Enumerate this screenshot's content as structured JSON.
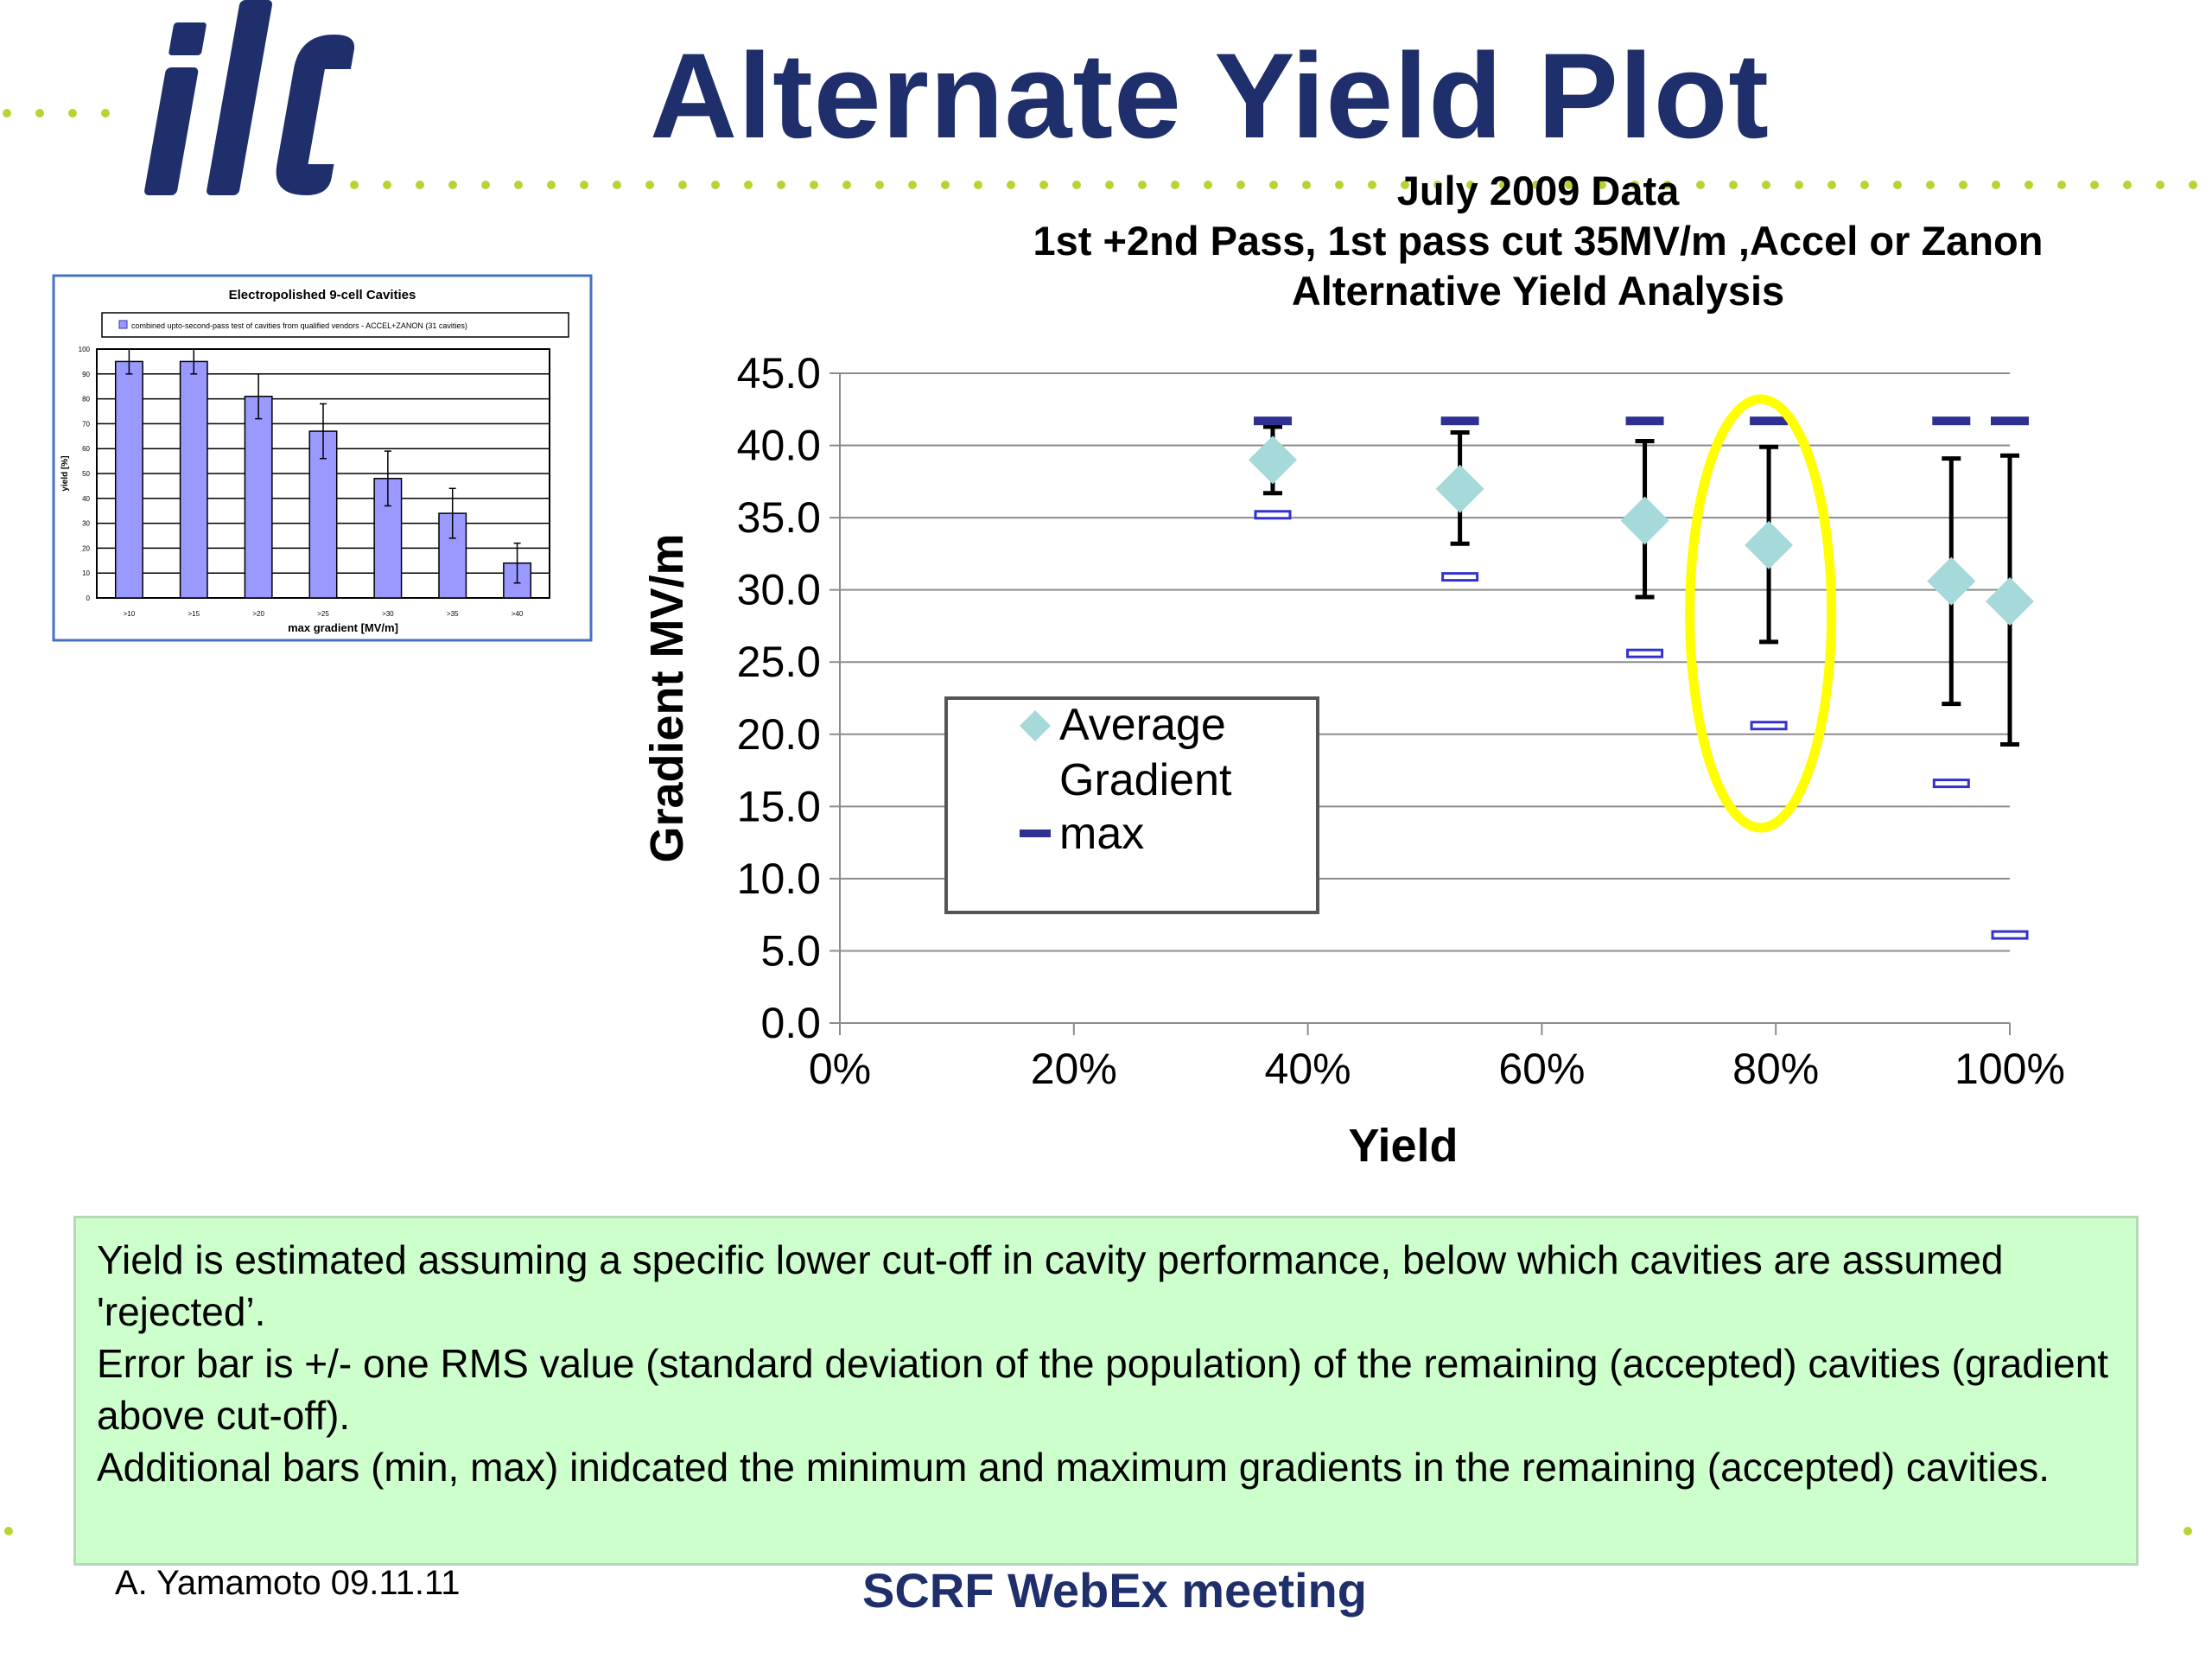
{
  "slide": {
    "title": "Alternate Yield Plot",
    "logo_text": "ilc",
    "footer_left": "A. Yamamoto 09.11.11",
    "footer_center": "SCRF WebEx meeting",
    "colors": {
      "title": "#1f2f6b",
      "dots": "#b8d432",
      "infobox_bg": "#ccffcc",
      "highlight": "#ffff00"
    }
  },
  "notes": [
    "Yield is estimated assuming a specific lower cut-off in cavity performance, below which cavities are assumed 'rejected’.",
    "Error bar is +/- one RMS value (standard deviation of the  population) of the remaining (accepted) cavities (gradient above cut-off).",
    "Additional bars (min, max) inidcated the minimum and maximum gradients in the remaining (accepted) cavities."
  ],
  "chart_data": [
    {
      "id": "main",
      "type": "scatter",
      "title_lines": [
        "July 2009 Data",
        "1st +2nd Pass, 1st pass cut 35MV/m ,Accel or Zanon",
        "Alternative Yield Analysis"
      ],
      "xlabel": "Yield",
      "ylabel": "Gradient MV/m",
      "xlim": [
        0,
        100
      ],
      "ylim": [
        0,
        45
      ],
      "x_ticks": [
        "0%",
        "20%",
        "40%",
        "60%",
        "80%",
        "100%"
      ],
      "y_ticks": [
        "0.0",
        "5.0",
        "10.0",
        "15.0",
        "20.0",
        "25.0",
        "30.0",
        "35.0",
        "40.0",
        "45.0"
      ],
      "grid": "horizontal",
      "legend": {
        "placement": "center-left",
        "entries": [
          "Average Gradient",
          "max"
        ]
      },
      "highlight_x": 79,
      "colors": {
        "average": "#a6d9d9",
        "max": "#2e3192",
        "min": "#3333cc",
        "error": "#000000"
      },
      "points": [
        {
          "x": 37,
          "avg": 39.0,
          "err_low": 36.7,
          "err_high": 41.3,
          "max": 41.7,
          "min": 35.2
        },
        {
          "x": 53,
          "avg": 37.0,
          "err_low": 33.2,
          "err_high": 40.9,
          "max": 41.7,
          "min": 30.9
        },
        {
          "x": 68.8,
          "avg": 34.8,
          "err_low": 29.5,
          "err_high": 40.3,
          "max": 41.7,
          "min": 25.6
        },
        {
          "x": 79.4,
          "avg": 33.1,
          "err_low": 26.4,
          "err_high": 39.9,
          "max": 41.7,
          "min": 20.6
        },
        {
          "x": 95,
          "avg": 30.6,
          "err_low": 22.1,
          "err_high": 39.1,
          "max": 41.7,
          "min": 16.6
        },
        {
          "x": 100,
          "avg": 29.2,
          "err_low": 19.3,
          "err_high": 39.3,
          "max": 41.7,
          "min": 6.1
        }
      ]
    },
    {
      "id": "inset",
      "type": "bar",
      "title": "Electropolished 9-cell Cavities",
      "legend_text": "combined upto-second-pass test of cavities from qualified vendors - ACCEL+ZANON (31 cavities)",
      "xlabel": "max gradient [MV/m]",
      "ylabel": "yield [%]",
      "ylim": [
        0,
        100
      ],
      "y_ticks": [
        "0",
        "10",
        "20",
        "30",
        "40",
        "50",
        "60",
        "70",
        "80",
        "90",
        "100"
      ],
      "categories": [
        ">10",
        ">15",
        ">20",
        ">25",
        ">30",
        ">35",
        ">40"
      ],
      "values": [
        95,
        95,
        81,
        67,
        48,
        34,
        14
      ],
      "errors": [
        5,
        5,
        9,
        11,
        11,
        10,
        8
      ],
      "colors": {
        "bar": "#9999ff",
        "frame": "#4472c4"
      }
    }
  ]
}
